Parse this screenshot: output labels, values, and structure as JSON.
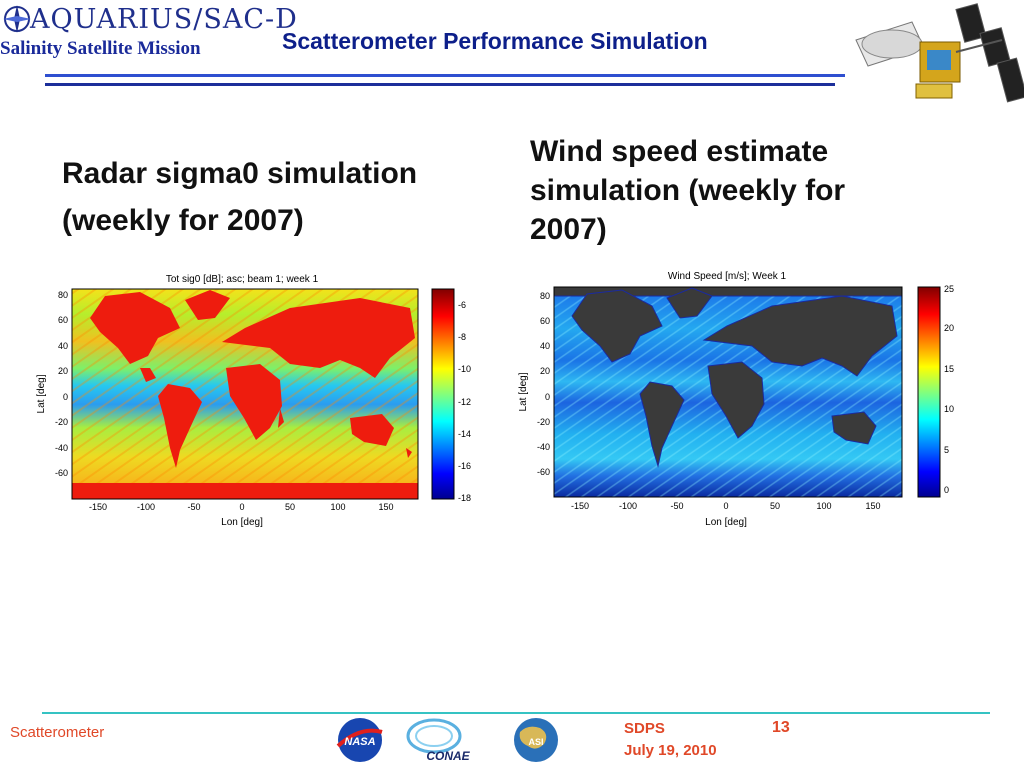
{
  "header": {
    "logo_text": "AQUARIUS/SAC-D",
    "mission": "Salinity Satellite Mission",
    "title": "Scatterometer Performance Simulation"
  },
  "left_panel": {
    "heading_line1": "Radar sigma0 simulation",
    "heading_line2": "(weekly for 2007)",
    "plot_title": "Tot sig0 [dB]; asc; beam 1; week 1",
    "xlabel": "Lon [deg]",
    "ylabel": "Lat [deg]",
    "colorbar_ticks": [
      "-6",
      "-8",
      "-10",
      "-12",
      "-14",
      "-16",
      "-18"
    ]
  },
  "right_panel": {
    "heading_line1": "Wind speed estimate",
    "heading_line2": "simulation (weekly for",
    "heading_line3": "2007)",
    "plot_title": "Wind Speed [m/s]; Week 1",
    "xlabel": "Lon [deg]",
    "ylabel": "Lat [deg]",
    "colorbar_ticks": [
      "25",
      "20",
      "15",
      "10",
      "5",
      "0"
    ]
  },
  "axes": {
    "x_ticks": [
      "-150",
      "-100",
      "-50",
      "0",
      "50",
      "100",
      "150"
    ],
    "y_ticks": [
      "80",
      "60",
      "40",
      "20",
      "0",
      "-20",
      "-40",
      "-60"
    ]
  },
  "chart_data": [
    {
      "type": "heatmap",
      "title": "Tot sig0 [dB]; asc; beam 1; week 1",
      "xlabel": "Lon [deg]",
      "ylabel": "Lat [deg]",
      "xlim": [
        -180,
        180
      ],
      "ylim": [
        -78,
        85
      ],
      "clim": [
        -18,
        -5
      ],
      "colormap": "jet"
    },
    {
      "type": "heatmap",
      "title": "Wind Speed [m/s]; Week 1",
      "xlabel": "Lon [deg]",
      "ylabel": "Lat [deg]",
      "xlim": [
        -180,
        180
      ],
      "ylim": [
        -78,
        85
      ],
      "clim": [
        0,
        25
      ],
      "colormap": "jet",
      "land_color": "#3a3a3a"
    }
  ],
  "footer": {
    "left_label": "Scatterometer",
    "sdps": "SDPS",
    "date": "July 19, 2010",
    "page_number": "13",
    "logos": [
      "NASA",
      "CONAE",
      "ASI"
    ]
  },
  "colors": {
    "title_blue": "#0d1f8a",
    "footer_red": "#e04828",
    "rule_cyan": "#35c3c3"
  }
}
